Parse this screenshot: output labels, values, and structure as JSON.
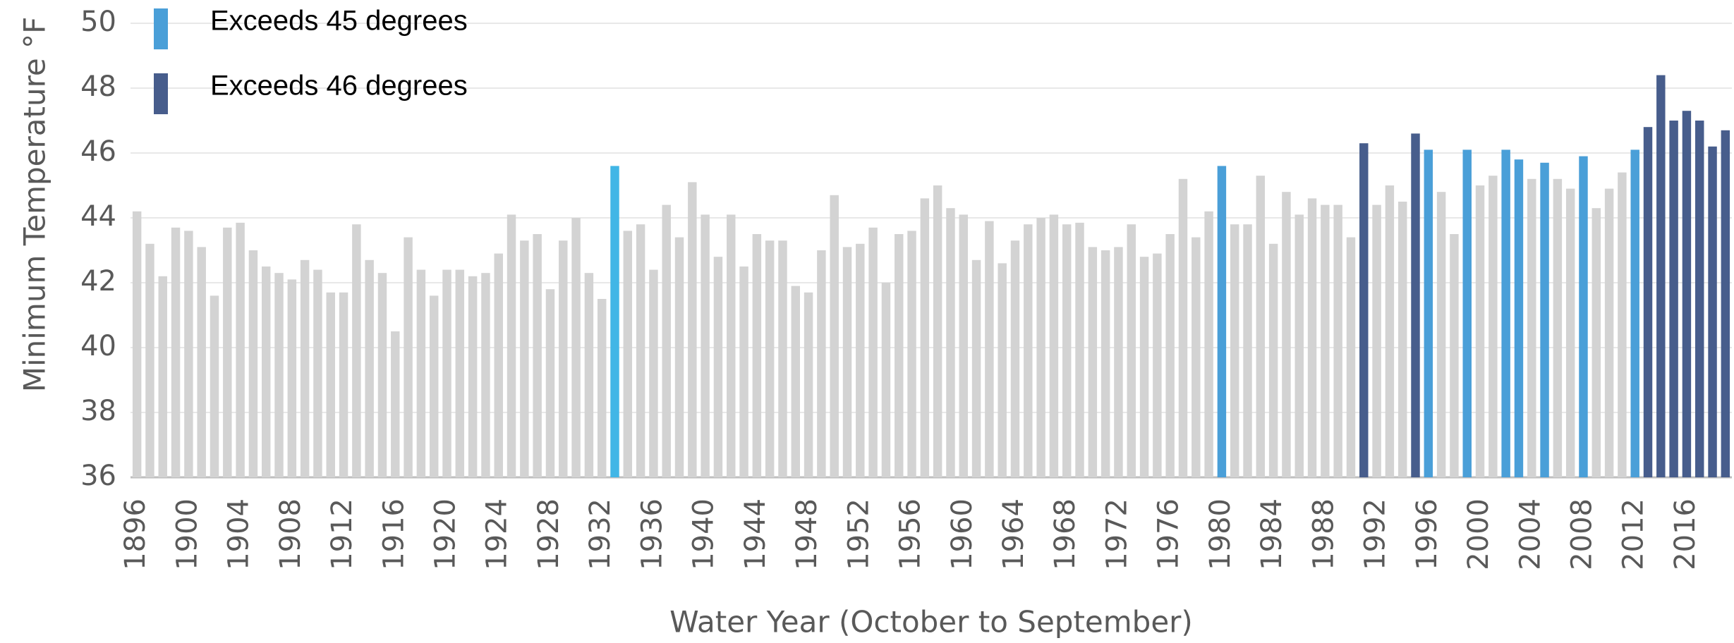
{
  "chart_data": {
    "type": "bar",
    "y_label": "Minimum Temperature °F",
    "x_label": "Water Year (October to September)",
    "legend": [
      {
        "label": "Exceeds 45 degrees",
        "color": "#4a9fd8"
      },
      {
        "label": "Exceeds 46 degrees",
        "color": "#475d8c"
      }
    ],
    "categories": [
      "1896",
      null,
      null,
      null,
      "1900",
      null,
      null,
      null,
      "1904",
      null,
      null,
      null,
      "1908",
      null,
      null,
      null,
      "1912",
      null,
      null,
      null,
      "1916",
      null,
      null,
      null,
      "1920",
      null,
      null,
      null,
      "1924",
      null,
      null,
      null,
      "1928",
      null,
      null,
      null,
      "1932",
      null,
      null,
      null,
      "1936",
      null,
      null,
      null,
      "1940",
      null,
      null,
      null,
      "1944",
      null,
      null,
      null,
      "1948",
      null,
      null,
      null,
      "1952",
      null,
      null,
      null,
      "1956",
      null,
      null,
      null,
      "1960",
      null,
      null,
      null,
      "1964",
      null,
      null,
      null,
      "1968",
      null,
      null,
      null,
      "1972",
      null,
      null,
      null,
      "1976",
      null,
      null,
      null,
      "1980",
      null,
      null,
      null,
      "1984",
      null,
      null,
      null,
      "1988",
      null,
      null,
      null,
      "1992",
      null,
      null,
      null,
      "1996",
      null,
      null,
      null,
      "2000",
      null,
      null,
      null,
      "2004",
      null,
      null,
      null,
      "2008",
      null,
      null,
      null,
      "2012",
      null,
      null,
      null,
      "2016",
      null,
      null,
      null
    ],
    "values": [
      44.2,
      43.2,
      42.2,
      43.7,
      43.6,
      43.1,
      41.6,
      43.7,
      43.85,
      43.0,
      42.5,
      42.3,
      42.1,
      42.7,
      42.4,
      41.7,
      41.7,
      43.8,
      42.7,
      42.3,
      40.5,
      43.4,
      42.4,
      41.6,
      42.4,
      42.4,
      42.2,
      42.3,
      42.9,
      44.1,
      43.3,
      43.5,
      41.8,
      43.3,
      44.0,
      42.3,
      41.5,
      45.6,
      43.6,
      43.8,
      42.4,
      44.4,
      43.4,
      45.1,
      44.1,
      42.8,
      44.1,
      42.5,
      43.5,
      43.3,
      43.3,
      41.9,
      41.7,
      43.0,
      44.7,
      43.1,
      43.2,
      43.7,
      42.0,
      43.5,
      43.6,
      44.6,
      45.0,
      44.3,
      44.1,
      42.7,
      43.9,
      42.6,
      43.3,
      43.8,
      44.0,
      44.1,
      43.8,
      43.85,
      43.1,
      43.0,
      43.1,
      43.8,
      42.8,
      42.9,
      43.5,
      45.2,
      43.4,
      44.2,
      45.6,
      43.8,
      43.8,
      45.3,
      43.2,
      44.8,
      44.1,
      44.6,
      44.4,
      44.4,
      43.4,
      46.3,
      44.4,
      45.0,
      44.5,
      46.6,
      46.1,
      44.8,
      43.5,
      46.1,
      45.0,
      45.3,
      46.1,
      45.8,
      45.2,
      45.7,
      45.2,
      44.9,
      45.9,
      44.3,
      44.9,
      45.4,
      46.1,
      46.8,
      48.4,
      47.0,
      47.3,
      47.0,
      46.2,
      46.7
    ],
    "colors": [
      "#d3d3d3",
      "#d3d3d3",
      "#d3d3d3",
      "#d3d3d3",
      "#d3d3d3",
      "#d3d3d3",
      "#d3d3d3",
      "#d3d3d3",
      "#d3d3d3",
      "#d3d3d3",
      "#d3d3d3",
      "#d3d3d3",
      "#d3d3d3",
      "#d3d3d3",
      "#d3d3d3",
      "#d3d3d3",
      "#d3d3d3",
      "#d3d3d3",
      "#d3d3d3",
      "#d3d3d3",
      "#d3d3d3",
      "#d3d3d3",
      "#d3d3d3",
      "#d3d3d3",
      "#d3d3d3",
      "#d3d3d3",
      "#d3d3d3",
      "#d3d3d3",
      "#d3d3d3",
      "#d3d3d3",
      "#d3d3d3",
      "#d3d3d3",
      "#d3d3d3",
      "#d3d3d3",
      "#d3d3d3",
      "#d3d3d3",
      "#d3d3d3",
      "#41b6e6",
      "#d3d3d3",
      "#d3d3d3",
      "#d3d3d3",
      "#d3d3d3",
      "#d3d3d3",
      "#d3d3d3",
      "#d3d3d3",
      "#d3d3d3",
      "#d3d3d3",
      "#d3d3d3",
      "#d3d3d3",
      "#d3d3d3",
      "#d3d3d3",
      "#d3d3d3",
      "#d3d3d3",
      "#d3d3d3",
      "#d3d3d3",
      "#d3d3d3",
      "#d3d3d3",
      "#d3d3d3",
      "#d3d3d3",
      "#d3d3d3",
      "#d3d3d3",
      "#d3d3d3",
      "#d3d3d3",
      "#d3d3d3",
      "#d3d3d3",
      "#d3d3d3",
      "#d3d3d3",
      "#d3d3d3",
      "#d3d3d3",
      "#d3d3d3",
      "#d3d3d3",
      "#d3d3d3",
      "#d3d3d3",
      "#d3d3d3",
      "#d3d3d3",
      "#d3d3d3",
      "#d3d3d3",
      "#d3d3d3",
      "#d3d3d3",
      "#d3d3d3",
      "#d3d3d3",
      "#d3d3d3",
      "#d3d3d3",
      "#d3d3d3",
      "#4a9fd8",
      "#d3d3d3",
      "#d3d3d3",
      "#d3d3d3",
      "#d3d3d3",
      "#d3d3d3",
      "#d3d3d3",
      "#d3d3d3",
      "#d3d3d3",
      "#d3d3d3",
      "#d3d3d3",
      "#475d8c",
      "#d3d3d3",
      "#d3d3d3",
      "#d3d3d3",
      "#475d8c",
      "#4a9fd8",
      "#d3d3d3",
      "#d3d3d3",
      "#4a9fd8",
      "#d3d3d3",
      "#d3d3d3",
      "#4a9fd8",
      "#4a9fd8",
      "#d3d3d3",
      "#4a9fd8",
      "#d3d3d3",
      "#d3d3d3",
      "#4a9fd8",
      "#d3d3d3",
      "#d3d3d3",
      "#d3d3d3",
      "#4a9fd8",
      "#475d8c",
      "#475d8c",
      "#475d8c",
      "#475d8c",
      "#475d8c",
      "#475d8c",
      "#475d8c"
    ],
    "ylim": [
      36,
      50
    ],
    "yticks": [
      36,
      38,
      40,
      42,
      44,
      46,
      48,
      50
    ],
    "grid": true
  }
}
